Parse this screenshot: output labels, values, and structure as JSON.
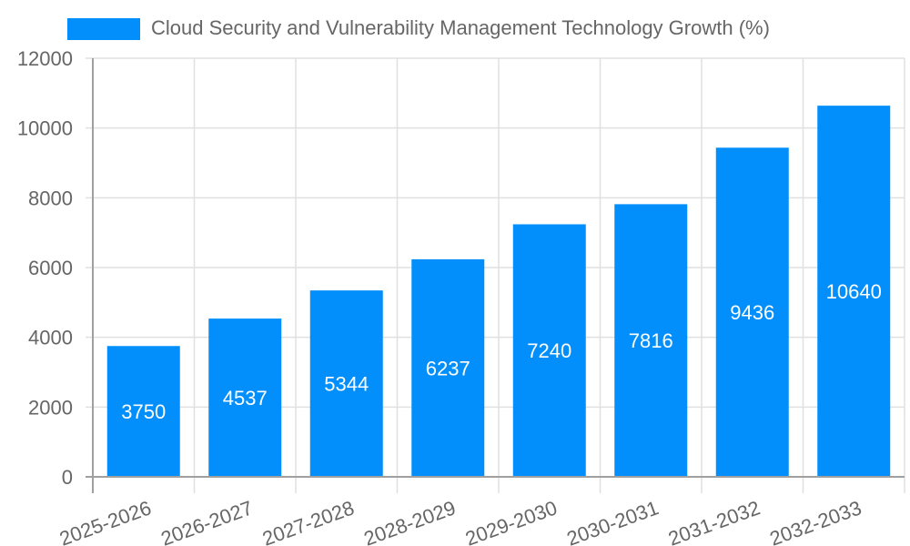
{
  "chart_data": {
    "type": "bar",
    "title": "",
    "legend": [
      {
        "label": "Cloud Security and Vulnerability Management Technology Growth (%)",
        "color": "#038ffb"
      }
    ],
    "legend_position": "top",
    "categories": [
      "2025-2026",
      "2026-2027",
      "2027-2028",
      "2028-2029",
      "2029-2030",
      "2030-2031",
      "2031-2032",
      "2032-2033"
    ],
    "series": [
      {
        "name": "Cloud Security and Vulnerability Management Technology Growth (%)",
        "values": [
          3750,
          4537,
          5344,
          6237,
          7240,
          7816,
          9436,
          10640
        ]
      }
    ],
    "xlabel": "",
    "ylabel": "",
    "ylim": [
      0,
      12000
    ],
    "yticks": [
      0,
      2000,
      4000,
      6000,
      8000,
      10000,
      12000
    ],
    "grid": true,
    "data_labels": true
  },
  "colors": {
    "bar": "#038ffb",
    "grid": "#e0e0e0",
    "axis": "#a0a0a0",
    "text": "#666666",
    "label": "#ffffff"
  }
}
